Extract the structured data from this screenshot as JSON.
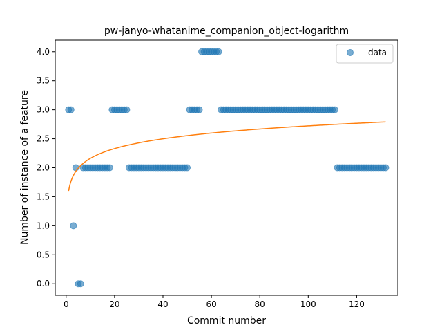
{
  "chart_data": {
    "type": "scatter",
    "title": "pw-janyo-whatanime_companion_object-logarithm",
    "xlabel": "Commit number",
    "ylabel": "Number of instance of a feature",
    "xlim": [
      -4.5,
      137
    ],
    "ylim": [
      -0.2,
      4.2
    ],
    "xticks": [
      0,
      20,
      40,
      60,
      80,
      100,
      120
    ],
    "yticks": [
      0.0,
      0.5,
      1.0,
      1.5,
      2.0,
      2.5,
      3.0,
      3.5,
      4.0
    ],
    "ytick_labels": [
      "0.0",
      "0.5",
      "1.0",
      "1.5",
      "2.0",
      "2.5",
      "3.0",
      "3.5",
      "4.0"
    ],
    "grid": false,
    "legend_position": "top-right",
    "series": [
      {
        "name": "data",
        "kind": "scatter",
        "color": "#1f77b4",
        "x": [
          1,
          2,
          3,
          4,
          5,
          6,
          7,
          8,
          9,
          10,
          11,
          12,
          13,
          14,
          15,
          16,
          17,
          18,
          19,
          20,
          21,
          22,
          23,
          24,
          25,
          26,
          27,
          28,
          29,
          30,
          31,
          32,
          33,
          34,
          35,
          36,
          37,
          38,
          39,
          40,
          41,
          42,
          43,
          44,
          45,
          46,
          47,
          48,
          49,
          50,
          51,
          52,
          53,
          54,
          55,
          56,
          57,
          58,
          59,
          60,
          61,
          62,
          63,
          64,
          65,
          66,
          67,
          68,
          69,
          70,
          71,
          72,
          73,
          74,
          75,
          76,
          77,
          78,
          79,
          80,
          81,
          82,
          83,
          84,
          85,
          86,
          87,
          88,
          89,
          90,
          91,
          92,
          93,
          94,
          95,
          96,
          97,
          98,
          99,
          100,
          101,
          102,
          103,
          104,
          105,
          106,
          107,
          108,
          109,
          110,
          111,
          112,
          113,
          114,
          115,
          116,
          117,
          118,
          119,
          120,
          121,
          122,
          123,
          124,
          125,
          126,
          127,
          128,
          129,
          130,
          131,
          132
        ],
        "y": [
          3,
          3,
          1,
          2,
          0,
          0,
          2,
          2,
          2,
          2,
          2,
          2,
          2,
          2,
          2,
          2,
          2,
          2,
          3,
          3,
          3,
          3,
          3,
          3,
          3,
          2,
          2,
          2,
          2,
          2,
          2,
          2,
          2,
          2,
          2,
          2,
          2,
          2,
          2,
          2,
          2,
          2,
          2,
          2,
          2,
          2,
          2,
          2,
          2,
          2,
          3,
          3,
          3,
          3,
          3,
          4,
          4,
          4,
          4,
          4,
          4,
          4,
          4,
          3,
          3,
          3,
          3,
          3,
          3,
          3,
          3,
          3,
          3,
          3,
          3,
          3,
          3,
          3,
          3,
          3,
          3,
          3,
          3,
          3,
          3,
          3,
          3,
          3,
          3,
          3,
          3,
          3,
          3,
          3,
          3,
          3,
          3,
          3,
          3,
          3,
          3,
          3,
          3,
          3,
          3,
          3,
          3,
          3,
          3,
          3,
          3,
          2,
          2,
          2,
          2,
          2,
          2,
          2,
          2,
          2,
          2,
          2,
          2,
          2,
          2,
          2,
          2,
          2,
          2,
          2,
          2,
          2
        ]
      },
      {
        "name": "",
        "kind": "line",
        "color": "#ff7f0e",
        "function": "y = 1.6 + 0.2437 * ln(x)",
        "x_range": [
          1,
          132
        ]
      }
    ]
  }
}
